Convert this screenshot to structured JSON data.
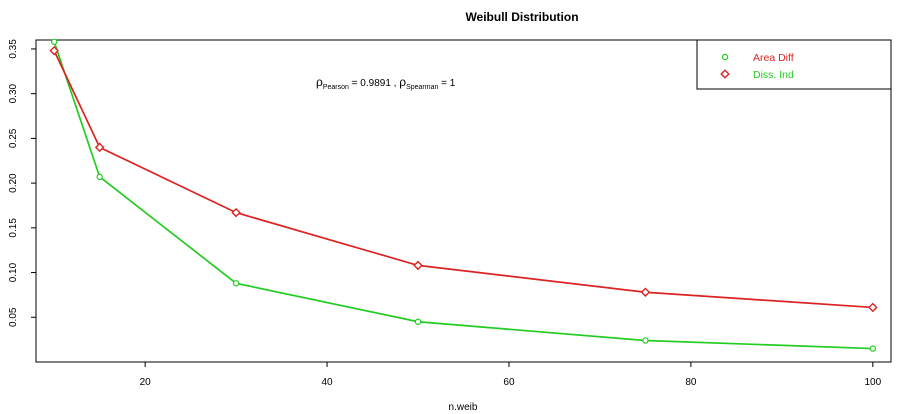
{
  "chart_data": {
    "type": "line",
    "title": "Weibull Distribution",
    "xlabel": "n.weib",
    "ylabel": "",
    "xlim": [
      8,
      102
    ],
    "ylim": [
      0,
      0.36
    ],
    "x_ticks": [
      20,
      40,
      60,
      80,
      100
    ],
    "y_ticks": [
      0.05,
      0.1,
      0.15,
      0.2,
      0.25,
      0.3,
      0.35
    ],
    "x_tick_labels": [
      "20",
      "40",
      "60",
      "80",
      "100"
    ],
    "y_tick_labels": [
      "0.05",
      "0.10",
      "0.15",
      "0.20",
      "0.25",
      "0.30",
      "0.35"
    ],
    "grid": false,
    "legend_position": "top-right",
    "x": [
      10,
      15,
      30,
      50,
      75,
      100
    ],
    "series": [
      {
        "key": "green",
        "color": "#22cc22",
        "marker": "circle",
        "values": [
          0.358,
          0.207,
          0.088,
          0.045,
          0.024,
          0.015
        ]
      },
      {
        "key": "red",
        "color": "#dd2222",
        "marker": "diamond",
        "values": [
          0.348,
          0.24,
          0.167,
          0.108,
          0.078,
          0.061
        ]
      }
    ],
    "legend": [
      {
        "label": "Area Diff",
        "marker": "circle",
        "marker_color": "#22cc22",
        "text_color": "#dd2222"
      },
      {
        "label": "Diss. Ind",
        "marker": "diamond",
        "marker_color": "#dd2222",
        "text_color": "#22cc22"
      }
    ],
    "annotation": {
      "rho": "ρ",
      "pearson_sub": "Pearson",
      "pearson_value": " = 0.9891 , ",
      "spearman_sub": "Spearman",
      "spearman_value": " = 1"
    }
  }
}
